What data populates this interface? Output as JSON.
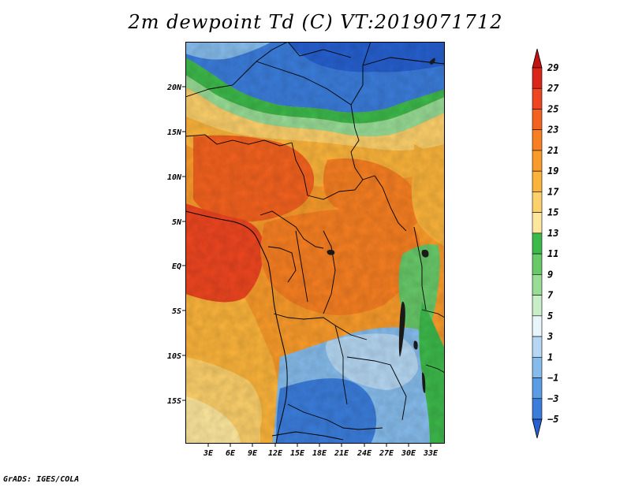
{
  "title": "2m dewpoint Td (C) VT:2019071712",
  "footer": "GrADS: IGES/COLA",
  "map": {
    "lat_labels": [
      "20N",
      "15N",
      "10N",
      "5N",
      "EQ",
      "5S",
      "10S",
      "15S"
    ],
    "lon_labels": [
      "3E",
      "6E",
      "9E",
      "12E",
      "15E",
      "18E",
      "21E",
      "24E",
      "27E",
      "30E",
      "33E"
    ],
    "land_desc_colors": {
      "ocean_tropical": "#fba042",
      "very_humid": "#f0461f",
      "humid": "#f57c28",
      "moderate": "#f9a93c",
      "dry_yellow": "#fbd67a",
      "pale_yellow": "#fde9a3",
      "green": "#3bb34a",
      "light_green": "#8ed38b",
      "pale_blue": "#a9cff0",
      "blue": "#6aa6e6",
      "deep_blue": "#2c6fd8"
    }
  },
  "colorbar": {
    "labels": [
      "29",
      "27",
      "25",
      "23",
      "21",
      "19",
      "17",
      "15",
      "13",
      "11",
      "9",
      "7",
      "5",
      "3",
      "1",
      "−1",
      "−3",
      "−5"
    ],
    "colors": [
      "#c21212",
      "#d92619",
      "#ee4620",
      "#f4621f",
      "#f77f22",
      "#f99b2b",
      "#fbb43b",
      "#fcd06b",
      "#fde79d",
      "#3db94b",
      "#68c969",
      "#98dc96",
      "#c8eec8",
      "#e8f6fb",
      "#b5d7f3",
      "#86bcec",
      "#5a9de4",
      "#3b7ddb",
      "#2660cf"
    ]
  }
}
